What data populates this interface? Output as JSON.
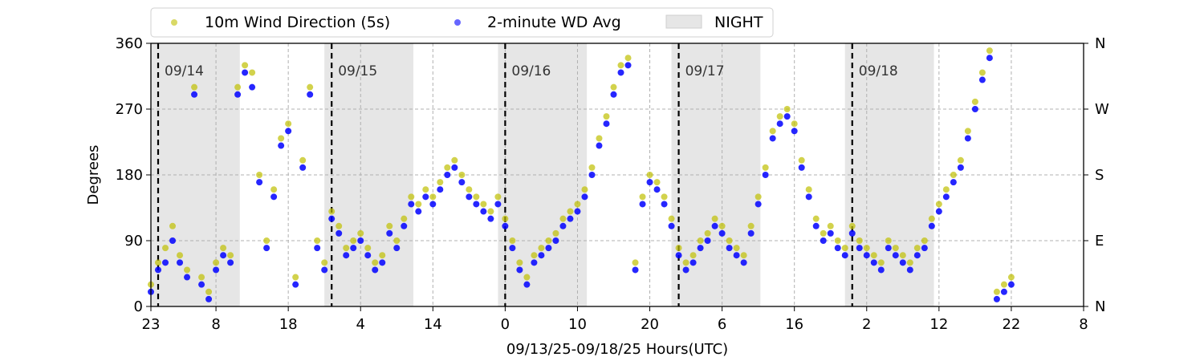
{
  "chart_data": {
    "type": "scatter",
    "title": "",
    "xlabel": "09/13/25-09/18/25  Hours(UTC)",
    "ylabel": "Degrees",
    "x_unit": "hours since 09/13/25 23:00 UTC",
    "xlim": [
      0,
      129
    ],
    "ylim": [
      0,
      360
    ],
    "x_tick_hours": [
      0,
      9,
      19,
      29,
      39,
      49,
      59,
      69,
      79,
      89,
      99,
      109,
      119,
      129
    ],
    "x_tick_labels": [
      "23",
      "8",
      "18",
      "4",
      "14",
      "0",
      "10",
      "20",
      "6",
      "16",
      "2",
      "12",
      "22",
      "8"
    ],
    "y_ticks": [
      0,
      90,
      180,
      270,
      360
    ],
    "y_tick_labels": [
      "0",
      "90",
      "180",
      "270",
      "360"
    ],
    "y2_tick_labels": [
      "N",
      "E",
      "S",
      "W",
      "N"
    ],
    "grid": true,
    "legend_position": "top (above plot)",
    "legend": [
      {
        "label": "10m Wind Direction (5s)",
        "marker": "dot",
        "color": "#bfbf00"
      },
      {
        "label": "2-minute WD Avg",
        "marker": "dot",
        "color": "#0000ff"
      },
      {
        "label": "NIGHT",
        "marker": "patch",
        "color": "#e6e6e6"
      }
    ],
    "day_boundaries": [
      {
        "hour": 1,
        "label": "09/14"
      },
      {
        "hour": 25,
        "label": "09/15"
      },
      {
        "hour": 49,
        "label": "09/16"
      },
      {
        "hour": 73,
        "label": "09/17"
      },
      {
        "hour": 97,
        "label": "09/18"
      }
    ],
    "night_periods": [
      [
        0,
        12.3
      ],
      [
        24,
        36.3
      ],
      [
        48,
        60.3
      ],
      [
        72,
        84.3
      ],
      [
        96,
        108.3
      ]
    ],
    "series": [
      {
        "name": "10m Wind Direction (5s)",
        "color": "#bfbf00",
        "x": [
          0,
          1,
          2,
          3,
          4,
          5,
          6,
          7,
          8,
          9,
          10,
          11,
          12,
          13,
          14,
          15,
          16,
          17,
          18,
          19,
          20,
          21,
          22,
          23,
          24,
          25,
          26,
          27,
          28,
          29,
          30,
          31,
          32,
          33,
          34,
          35,
          36,
          37,
          38,
          39,
          40,
          41,
          42,
          43,
          44,
          45,
          46,
          47,
          48,
          49,
          50,
          51,
          52,
          53,
          54,
          55,
          56,
          57,
          58,
          59,
          60,
          61,
          62,
          63,
          64,
          65,
          66,
          67,
          68,
          69,
          70,
          71,
          72,
          73,
          74,
          75,
          76,
          77,
          78,
          79,
          80,
          81,
          82,
          83,
          84,
          85,
          86,
          87,
          88,
          89,
          90,
          91,
          92,
          93,
          94,
          95,
          96,
          97,
          98,
          99,
          100,
          101,
          102,
          103,
          104,
          105,
          106,
          107,
          108,
          109,
          110,
          111,
          112,
          113,
          114,
          115,
          116,
          117,
          118,
          119
        ],
        "y": [
          30,
          60,
          80,
          110,
          70,
          50,
          300,
          40,
          20,
          60,
          80,
          70,
          300,
          330,
          320,
          180,
          90,
          160,
          230,
          250,
          40,
          200,
          300,
          90,
          60,
          130,
          110,
          80,
          90,
          100,
          80,
          60,
          70,
          110,
          90,
          120,
          150,
          140,
          160,
          150,
          170,
          190,
          200,
          180,
          160,
          150,
          140,
          130,
          150,
          120,
          90,
          60,
          40,
          70,
          80,
          90,
          100,
          120,
          130,
          140,
          160,
          190,
          230,
          260,
          300,
          330,
          340,
          60,
          150,
          180,
          170,
          150,
          120,
          80,
          60,
          70,
          90,
          100,
          120,
          110,
          90,
          80,
          70,
          110,
          150,
          190,
          240,
          260,
          270,
          250,
          200,
          160,
          120,
          100,
          110,
          90,
          80,
          110,
          90,
          80,
          70,
          60,
          90,
          80,
          70,
          60,
          80,
          90,
          120,
          140,
          160,
          180,
          200,
          240,
          280,
          320,
          350,
          20,
          30,
          40
        ]
      },
      {
        "name": "2-minute WD Avg",
        "color": "#0000ff",
        "x": [
          0,
          1,
          2,
          3,
          4,
          5,
          6,
          7,
          8,
          9,
          10,
          11,
          12,
          13,
          14,
          15,
          16,
          17,
          18,
          19,
          20,
          21,
          22,
          23,
          24,
          25,
          26,
          27,
          28,
          29,
          30,
          31,
          32,
          33,
          34,
          35,
          36,
          37,
          38,
          39,
          40,
          41,
          42,
          43,
          44,
          45,
          46,
          47,
          48,
          49,
          50,
          51,
          52,
          53,
          54,
          55,
          56,
          57,
          58,
          59,
          60,
          61,
          62,
          63,
          64,
          65,
          66,
          67,
          68,
          69,
          70,
          71,
          72,
          73,
          74,
          75,
          76,
          77,
          78,
          79,
          80,
          81,
          82,
          83,
          84,
          85,
          86,
          87,
          88,
          89,
          90,
          91,
          92,
          93,
          94,
          95,
          96,
          97,
          98,
          99,
          100,
          101,
          102,
          103,
          104,
          105,
          106,
          107,
          108,
          109,
          110,
          111,
          112,
          113,
          114,
          115,
          116,
          117,
          118,
          119
        ],
        "y": [
          20,
          50,
          60,
          90,
          60,
          40,
          290,
          30,
          10,
          50,
          70,
          60,
          290,
          320,
          300,
          170,
          80,
          150,
          220,
          240,
          30,
          190,
          290,
          80,
          50,
          120,
          100,
          70,
          80,
          90,
          70,
          50,
          60,
          100,
          80,
          110,
          140,
          130,
          150,
          140,
          160,
          180,
          190,
          170,
          150,
          140,
          130,
          120,
          140,
          110,
          80,
          50,
          30,
          60,
          70,
          80,
          90,
          110,
          120,
          130,
          150,
          180,
          220,
          250,
          290,
          320,
          330,
          50,
          140,
          170,
          160,
          140,
          110,
          70,
          50,
          60,
          80,
          90,
          110,
          100,
          80,
          70,
          60,
          100,
          140,
          180,
          230,
          250,
          260,
          240,
          190,
          150,
          110,
          90,
          100,
          80,
          70,
          100,
          80,
          70,
          60,
          50,
          80,
          70,
          60,
          50,
          70,
          80,
          110,
          130,
          150,
          170,
          190,
          230,
          270,
          310,
          340,
          10,
          20,
          30
        ]
      }
    ]
  }
}
